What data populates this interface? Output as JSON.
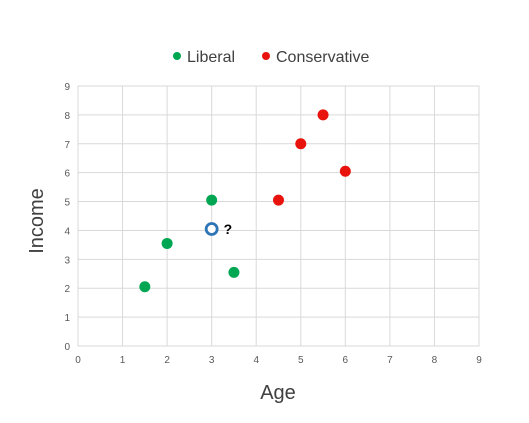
{
  "chart_data": {
    "type": "scatter",
    "title": "",
    "xlabel": "Age",
    "ylabel": "Income",
    "xlim": [
      0,
      9
    ],
    "ylim": [
      0,
      9
    ],
    "xticks": [
      "0",
      "1",
      "2",
      "3",
      "4",
      "5",
      "6",
      "7",
      "8",
      "9"
    ],
    "yticks": [
      "0",
      "1",
      "2",
      "3",
      "4",
      "5",
      "6",
      "7",
      "8",
      "9"
    ],
    "grid": true,
    "legend_position": "top-center",
    "series": [
      {
        "name": "Liberal",
        "color": "#00A651",
        "points": [
          [
            1.5,
            2.05
          ],
          [
            2,
            3.55
          ],
          [
            3,
            5.05
          ],
          [
            3.5,
            2.55
          ]
        ]
      },
      {
        "name": "Conservative",
        "color": "#E8130C",
        "points": [
          [
            4.5,
            5.05
          ],
          [
            5,
            7
          ],
          [
            5.5,
            8
          ],
          [
            6,
            6.05
          ]
        ]
      }
    ],
    "query_point": {
      "x": 3,
      "y": 4.05,
      "label": "?",
      "color": "#2E75B6"
    }
  }
}
